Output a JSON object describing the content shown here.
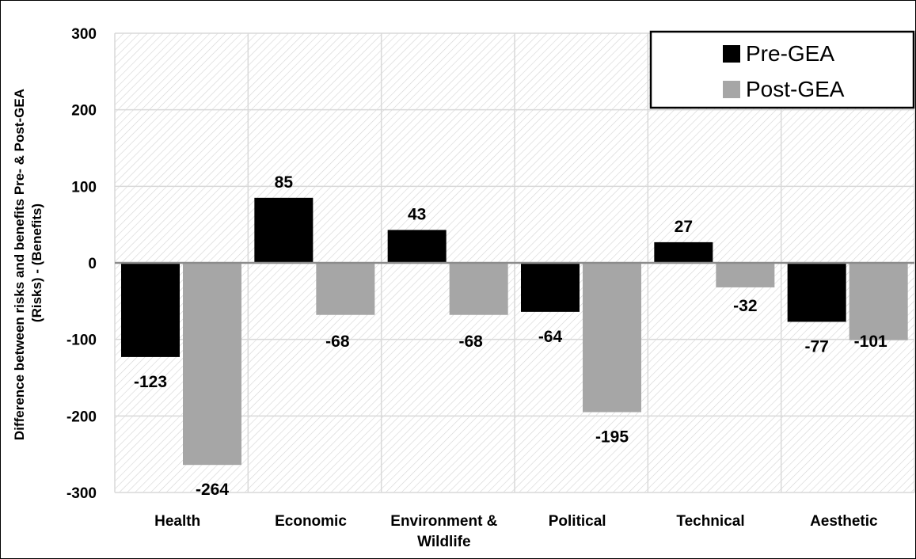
{
  "chart_data": {
    "type": "bar",
    "ylabel_lines": [
      "Difference between risks and benefits Pre- & Post-GEA",
      "(Risks) - (Benefits)"
    ],
    "categories": [
      [
        "Health"
      ],
      [
        "Economic"
      ],
      [
        "Environment &",
        "Wildlife"
      ],
      [
        "Political"
      ],
      [
        "Technical"
      ],
      [
        "Aesthetic"
      ]
    ],
    "series": [
      {
        "name": "Pre-GEA",
        "color": "#000000",
        "values": [
          -123,
          85,
          43,
          -64,
          27,
          -77
        ]
      },
      {
        "name": "Post-GEA",
        "color": "#a6a6a6",
        "values": [
          -264,
          -68,
          -68,
          -195,
          -32,
          -101
        ]
      }
    ],
    "ylim": [
      -300,
      300
    ],
    "yticks": [
      -300,
      -200,
      -100,
      0,
      100,
      200,
      300
    ],
    "grid": true,
    "legend_position": "top-right"
  }
}
